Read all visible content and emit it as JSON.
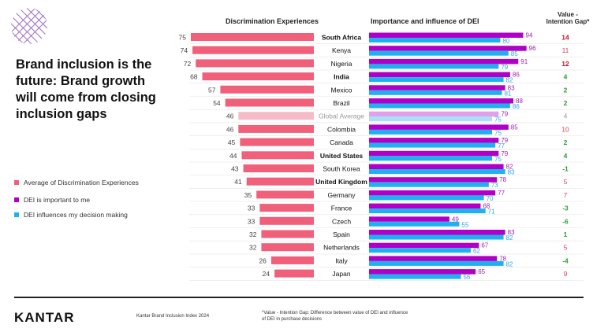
{
  "title": "Brand inclusion is the future: Brand growth will come from closing inclusion gaps",
  "legend": [
    {
      "label": "Average of Discrimination Experiences",
      "color": "#f0607a"
    },
    {
      "label": "DEI is important to me",
      "color": "#b000c8"
    },
    {
      "label": "DEI influences my decision making",
      "color": "#1fb0ee"
    }
  ],
  "footer": {
    "logo": "KANTAR",
    "source": "Kantar Brand Inclusion Index 2024",
    "note": "*Value - Intention Gap: Difference between value of DEI and influence of DEI in purchase decisions"
  },
  "chart_data": {
    "type": "bar",
    "headers": {
      "discrimination": "Discrimination Experiences",
      "dei": "Importance and influence of DEI",
      "gap": "Value - Intention Gap*"
    },
    "categories": [
      "South Africa",
      "Kenya",
      "Nigeria",
      "India",
      "Mexico",
      "Brazil",
      "Global Average",
      "Colombia",
      "Canada",
      "United States",
      "South Korea",
      "United Kingdom",
      "Germany",
      "France",
      "Czech",
      "Spain",
      "Netherlands",
      "Italy",
      "Japan"
    ],
    "bold_categories": [
      "South Africa",
      "India",
      "United States",
      "United Kingdom"
    ],
    "series": [
      {
        "name": "Average of Discrimination Experiences",
        "values": [
          75,
          74,
          72,
          68,
          57,
          54,
          46,
          46,
          45,
          44,
          43,
          41,
          35,
          33,
          33,
          32,
          32,
          26,
          24
        ]
      },
      {
        "name": "DEI is important to me",
        "values": [
          94,
          96,
          91,
          86,
          83,
          88,
          79,
          85,
          79,
          79,
          82,
          78,
          77,
          68,
          49,
          83,
          67,
          78,
          65
        ]
      },
      {
        "name": "DEI influences my decision making",
        "values": [
          80,
          85,
          79,
          82,
          81,
          86,
          75,
          75,
          77,
          75,
          83,
          73,
          70,
          71,
          55,
          82,
          62,
          82,
          56
        ]
      }
    ],
    "gap": [
      14,
      11,
      12,
      4,
      2,
      2,
      4,
      10,
      2,
      4,
      -1,
      5,
      7,
      -3,
      -6,
      1,
      5,
      -4,
      9
    ],
    "colors": {
      "discrimination": "#f0607a",
      "important": "#b000c8",
      "influences": "#1fb0ee",
      "gap_red": "#c8102e",
      "gap_green": "#2e9e2e",
      "average": "#999999"
    }
  }
}
